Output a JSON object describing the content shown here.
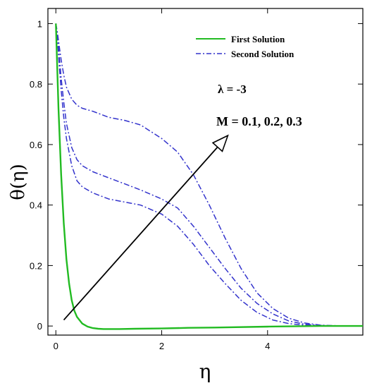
{
  "chart_data": {
    "type": "line",
    "xlabel": "η",
    "ylabel": "θ(η)",
    "xlim": [
      -0.15,
      5.8
    ],
    "ylim": [
      -0.03,
      1.05
    ],
    "x_ticks": [
      "0",
      "2",
      "4"
    ],
    "y_ticks": [
      "0",
      "0.2",
      "0.4",
      "0.6",
      "0.8",
      "1"
    ],
    "x_tick_values": [
      0,
      2,
      4
    ],
    "y_tick_values": [
      0,
      0.2,
      0.4,
      0.6,
      0.8,
      1
    ],
    "grid": false,
    "legend": {
      "placement": "top-right",
      "entries": [
        {
          "label": "First Solution",
          "color": "#22bb22",
          "style": "solid"
        },
        {
          "label": "Second Solution",
          "color": "#3333cc",
          "style": "dash-dot"
        }
      ]
    },
    "annotations": {
      "lambda": "λ = -3",
      "params": "M = 0.1, 0.2, 0.3",
      "arrow_from": [
        0.15,
        0.02
      ],
      "arrow_to": [
        3.25,
        0.63
      ]
    },
    "series": [
      {
        "name": "First Solution",
        "color": "#22bb22",
        "x": [
          0,
          0.05,
          0.1,
          0.15,
          0.2,
          0.25,
          0.3,
          0.35,
          0.4,
          0.5,
          0.6,
          0.7,
          0.8,
          0.9,
          1.0,
          1.2,
          1.5,
          2.0,
          2.5,
          3.0,
          4.0,
          5.0,
          5.8
        ],
        "values": [
          1.0,
          0.72,
          0.5,
          0.34,
          0.22,
          0.14,
          0.085,
          0.05,
          0.03,
          0.008,
          -0.002,
          -0.007,
          -0.009,
          -0.01,
          -0.01,
          -0.01,
          -0.009,
          -0.008,
          -0.006,
          -0.005,
          -0.002,
          0,
          0
        ]
      },
      {
        "name": "Second Solution",
        "color": "#3333cc",
        "x": [
          0,
          0.03,
          0.06,
          0.1,
          0.15,
          0.2,
          0.3,
          0.4,
          0.5,
          0.7,
          1.0,
          1.3,
          1.6,
          2.0,
          2.3,
          2.6,
          2.9,
          3.2,
          3.5,
          3.8,
          4.1,
          4.4,
          4.7,
          5.0,
          5.3,
          5.8
        ],
        "values": [
          1.0,
          0.95,
          0.87,
          0.78,
          0.69,
          0.62,
          0.53,
          0.48,
          0.46,
          0.44,
          0.42,
          0.41,
          0.4,
          0.37,
          0.33,
          0.27,
          0.2,
          0.14,
          0.085,
          0.045,
          0.02,
          0.008,
          0.003,
          0.001,
          0,
          0
        ]
      },
      {
        "name": "Second Solution",
        "color": "#3333cc",
        "x": [
          0,
          0.03,
          0.06,
          0.1,
          0.15,
          0.2,
          0.3,
          0.4,
          0.5,
          0.7,
          1.0,
          1.3,
          1.6,
          2.0,
          2.3,
          2.6,
          2.9,
          3.2,
          3.5,
          3.8,
          4.1,
          4.4,
          4.7,
          5.0,
          5.3,
          5.8
        ],
        "values": [
          1.0,
          0.96,
          0.9,
          0.82,
          0.74,
          0.67,
          0.59,
          0.55,
          0.53,
          0.51,
          0.49,
          0.47,
          0.45,
          0.42,
          0.39,
          0.33,
          0.26,
          0.19,
          0.125,
          0.075,
          0.04,
          0.017,
          0.006,
          0.002,
          0,
          0
        ]
      },
      {
        "name": "Second Solution",
        "color": "#3333cc",
        "x": [
          0,
          0.03,
          0.06,
          0.1,
          0.15,
          0.2,
          0.3,
          0.4,
          0.5,
          0.7,
          1.0,
          1.3,
          1.6,
          2.0,
          2.3,
          2.6,
          2.9,
          3.2,
          3.5,
          3.8,
          4.1,
          4.4,
          4.7,
          5.0,
          5.3,
          5.8
        ],
        "values": [
          1.0,
          0.97,
          0.93,
          0.88,
          0.83,
          0.79,
          0.75,
          0.73,
          0.72,
          0.71,
          0.69,
          0.68,
          0.665,
          0.62,
          0.575,
          0.5,
          0.4,
          0.29,
          0.19,
          0.11,
          0.058,
          0.026,
          0.01,
          0.003,
          0.001,
          0
        ]
      }
    ]
  }
}
